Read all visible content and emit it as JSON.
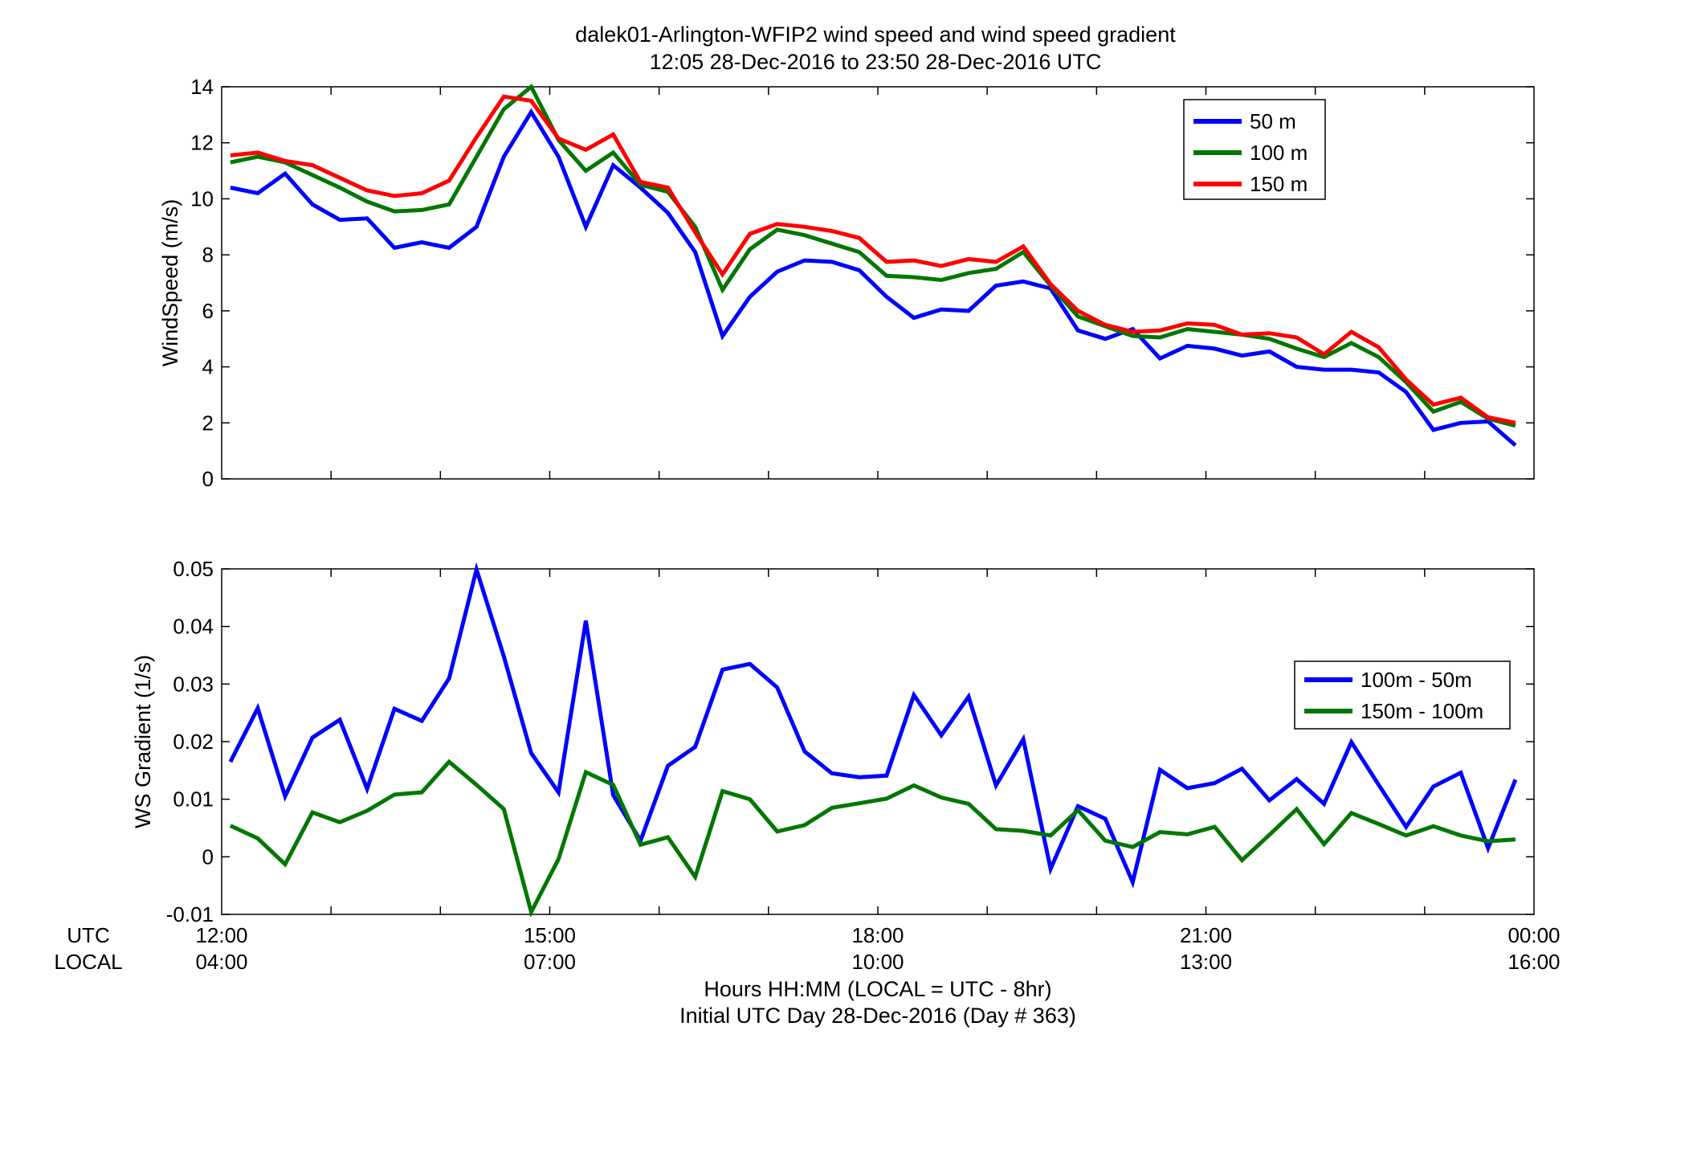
{
  "chart_data": [
    {
      "type": "line",
      "title": "dalek01-Arlington-WFIP2  wind speed and wind speed gradient",
      "subtitle": "12:05 28-Dec-2016 to 23:50 28-Dec-2016  UTC",
      "xlabel": "",
      "ylabel": "WindSpeed (m/s)",
      "xlim": [
        0,
        12
      ],
      "ylim": [
        0,
        14
      ],
      "yticks": [
        0,
        2,
        4,
        6,
        8,
        10,
        12,
        14
      ],
      "ytick_labels": [
        "0",
        "2",
        "4",
        "6",
        "8",
        "10",
        "12",
        "14"
      ],
      "grid": false,
      "legend": "top-right",
      "x": [
        0.08,
        0.33,
        0.58,
        0.83,
        1.08,
        1.33,
        1.58,
        1.83,
        2.08,
        2.33,
        2.58,
        2.83,
        3.08,
        3.33,
        3.58,
        3.83,
        4.08,
        4.33,
        4.58,
        4.83,
        5.08,
        5.33,
        5.58,
        5.83,
        6.08,
        6.33,
        6.58,
        6.83,
        7.08,
        7.33,
        7.58,
        7.83,
        8.08,
        8.33,
        8.58,
        8.83,
        9.08,
        9.33,
        9.58,
        9.83,
        10.08,
        10.33,
        10.58,
        10.83,
        11.08,
        11.33,
        11.58,
        11.83
      ],
      "series": [
        {
          "name": "50 m",
          "color": "#0000ff",
          "values": [
            10.4,
            10.2,
            10.9,
            9.8,
            9.25,
            9.3,
            8.25,
            8.45,
            8.25,
            9.0,
            11.5,
            13.1,
            11.5,
            9.0,
            11.2,
            10.4,
            9.5,
            8.1,
            5.1,
            6.5,
            7.4,
            7.8,
            7.75,
            7.45,
            6.5,
            5.75,
            6.05,
            6.0,
            6.9,
            7.05,
            6.8,
            5.3,
            5.0,
            5.35,
            4.3,
            4.75,
            4.65,
            4.4,
            4.55,
            4.0,
            3.9,
            3.9,
            3.8,
            3.1,
            1.75,
            2.0,
            2.05,
            1.2
          ]
        },
        {
          "name": "100 m",
          "color": "#007700",
          "values": [
            11.3,
            11.5,
            11.3,
            10.85,
            10.4,
            9.9,
            9.55,
            9.6,
            9.8,
            11.5,
            13.2,
            14.0,
            12.1,
            11.0,
            11.65,
            10.5,
            10.25,
            9.0,
            6.75,
            8.2,
            8.9,
            8.7,
            8.4,
            8.1,
            7.25,
            7.2,
            7.1,
            7.35,
            7.5,
            8.1,
            6.9,
            5.8,
            5.45,
            5.1,
            5.05,
            5.35,
            5.25,
            5.15,
            5.0,
            4.65,
            4.35,
            4.85,
            4.35,
            3.45,
            2.4,
            2.75,
            2.15,
            1.9
          ]
        },
        {
          "name": "150 m",
          "color": "#ff0000",
          "values": [
            11.55,
            11.65,
            11.35,
            11.2,
            10.75,
            10.3,
            10.1,
            10.2,
            10.65,
            12.2,
            13.65,
            13.5,
            12.15,
            11.75,
            12.3,
            10.6,
            10.4,
            8.8,
            7.3,
            8.75,
            9.1,
            9.0,
            8.85,
            8.6,
            7.75,
            7.8,
            7.6,
            7.85,
            7.75,
            8.3,
            6.95,
            6.0,
            5.5,
            5.25,
            5.3,
            5.55,
            5.5,
            5.15,
            5.2,
            5.05,
            4.45,
            5.25,
            4.7,
            3.55,
            2.65,
            2.9,
            2.2,
            2.0
          ]
        }
      ]
    },
    {
      "type": "line",
      "xlabel": "Hours HH:MM  (LOCAL = UTC - 8hr)",
      "xlabel2": "Initial UTC Day 28-Dec-2016 (Day # 363)",
      "ylabel": "WS Gradient (1/s)",
      "xlim": [
        0,
        12
      ],
      "ylim": [
        -0.01,
        0.05
      ],
      "yticks": [
        -0.01,
        0,
        0.01,
        0.02,
        0.03,
        0.04,
        0.05
      ],
      "ytick_labels": [
        "-0.01",
        "0",
        "0.01",
        "0.02",
        "0.03",
        "0.04",
        "0.05"
      ],
      "xticks": [
        0,
        3,
        6,
        9,
        12
      ],
      "xtick_labels_utc": [
        "12:00",
        "15:00",
        "18:00",
        "21:00",
        "00:00"
      ],
      "xtick_labels_local": [
        "04:00",
        "07:00",
        "10:00",
        "13:00",
        "16:00"
      ],
      "row_label_utc": "UTC",
      "row_label_local": "LOCAL",
      "grid": false,
      "legend": "right",
      "x": [
        0.08,
        0.33,
        0.58,
        0.83,
        1.08,
        1.33,
        1.58,
        1.83,
        2.08,
        2.33,
        2.58,
        2.83,
        3.08,
        3.33,
        3.58,
        3.83,
        4.08,
        4.33,
        4.58,
        4.83,
        5.08,
        5.33,
        5.58,
        5.83,
        6.08,
        6.33,
        6.58,
        6.83,
        7.08,
        7.33,
        7.58,
        7.83,
        8.08,
        8.33,
        8.58,
        8.83,
        9.08,
        9.33,
        9.58,
        9.83,
        10.08,
        10.33,
        10.58,
        10.83,
        11.08,
        11.33,
        11.58,
        11.83
      ],
      "series": [
        {
          "name": "100m - 50m",
          "color": "#0000ff",
          "values": [
            0.0165,
            0.0258,
            0.0105,
            0.0207,
            0.0238,
            0.0118,
            0.0257,
            0.0236,
            0.031,
            0.0499,
            0.0348,
            0.018,
            0.0112,
            0.041,
            0.0107,
            0.0028,
            0.0158,
            0.0191,
            0.0325,
            0.0335,
            0.0294,
            0.0183,
            0.0145,
            0.0138,
            0.0141,
            0.0281,
            0.0211,
            0.0278,
            0.0124,
            0.0204,
            -0.0021,
            0.0088,
            0.0066,
            -0.0044,
            0.0151,
            0.0119,
            0.0128,
            0.0153,
            0.0098,
            0.0135,
            0.0092,
            0.0199,
            0.0125,
            0.0052,
            0.0122,
            0.0146,
            0.0015,
            0.0134
          ]
        },
        {
          "name": "150m - 100m",
          "color": "#007700",
          "values": [
            0.0054,
            0.0032,
            -0.0013,
            0.0077,
            0.006,
            0.008,
            0.0108,
            0.0112,
            0.0165,
            0.0125,
            0.0083,
            -0.0096,
            -0.0004,
            0.0147,
            0.0125,
            0.0021,
            0.0034,
            -0.0035,
            0.0114,
            0.01,
            0.0044,
            0.0055,
            0.0085,
            0.0093,
            0.0101,
            0.0124,
            0.0103,
            0.0092,
            0.0048,
            0.0045,
            0.0037,
            0.0081,
            0.0028,
            0.0017,
            0.0043,
            0.0039,
            0.0052,
            -0.0006,
            0.0038,
            0.0083,
            0.0022,
            0.0076,
            0.0057,
            0.0037,
            0.0053,
            0.0037,
            0.0027,
            0.003
          ]
        }
      ]
    }
  ]
}
